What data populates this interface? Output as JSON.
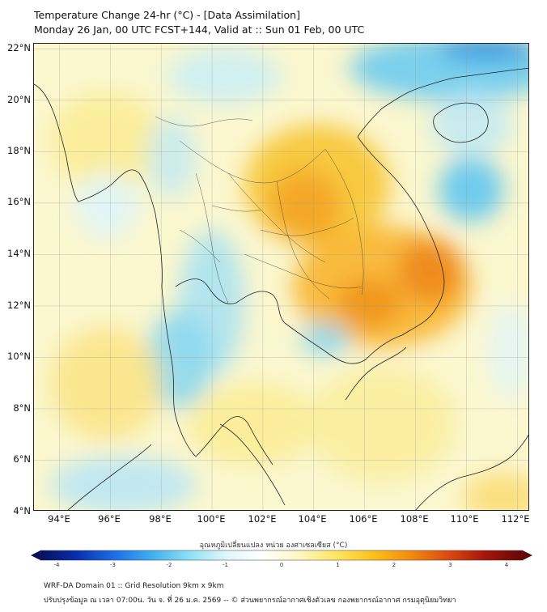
{
  "title_line1": "Temperature Change 24-hr (°C) - [Data Assimilation]",
  "title_line2": "Monday 26 Jan, 00 UTC FCST+144, Valid at :: Sun 01 Feb, 00 UTC",
  "lat_labels": [
    "22°N",
    "20°N",
    "18°N",
    "16°N",
    "14°N",
    "12°N",
    "10°N",
    "8°N",
    "6°N",
    "4°N"
  ],
  "lon_labels": [
    "94°E",
    "96°E",
    "98°E",
    "100°E",
    "102°E",
    "104°E",
    "106°E",
    "108°E",
    "110°E",
    "112°E"
  ],
  "colorbar": {
    "title": "อุณหภูมิเปลี่ยนแปลง หน่วย องศาเซลเซียส (°C)",
    "ticks": [
      "-4",
      "-3",
      "-2",
      "-1",
      "0",
      "1",
      "2",
      "3",
      "4"
    ],
    "min": -4,
    "max": 4,
    "colors": [
      "#08105e",
      "#0a2fb0",
      "#1e6ee6",
      "#3fb0ee",
      "#8ee0f5",
      "#dff6fb",
      "#ffffff",
      "#fff6c0",
      "#fde660",
      "#fbbf1c",
      "#f28a10",
      "#d94a10",
      "#a5160a",
      "#640707"
    ]
  },
  "footer_line1": "WRF-DA Domain 01 :: Grid Resolution 9km x 9km",
  "footer_line2": "ปรับปรุงข้อมูล ณ เวลา 07:00น. วัน จ. ที่ 26 ม.ค. 2569 -- © ส่วนพยากรณ์อากาศเชิงตัวเลข กองพยากรณ์อากาศ กรมอุตุนิยมวิทยา",
  "map": {
    "lat_range": [
      4,
      22.2
    ],
    "lon_range": [
      93,
      112.5
    ],
    "field_background": "#fbf7cf",
    "land_outline_color": "#222222"
  }
}
